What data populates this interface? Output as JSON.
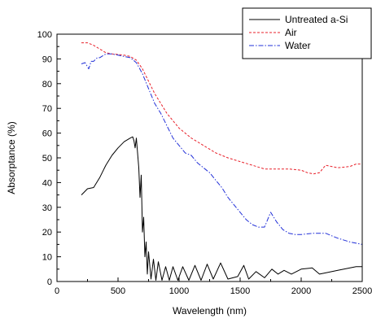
{
  "chart_data": {
    "type": "line",
    "title": "",
    "xlabel": "Wavelength (nm)",
    "ylabel": "Absorptance (%)",
    "xlim": [
      0,
      2500
    ],
    "ylim": [
      0,
      100
    ],
    "x_ticks": [
      0,
      500,
      1000,
      1500,
      2000,
      2500
    ],
    "y_ticks": [
      0,
      10,
      20,
      30,
      40,
      50,
      60,
      70,
      80,
      90,
      100
    ],
    "x_tick_labels": [
      "0",
      "500",
      "1000",
      "1500",
      "2000",
      "2500"
    ],
    "y_tick_labels": [
      "0",
      "10",
      "20",
      "30",
      "40",
      "50",
      "60",
      "70",
      "80",
      "90",
      "100"
    ],
    "grid": false,
    "legend_position": "top-right",
    "series": [
      {
        "name": "Untreated a-Si",
        "color": "#000000",
        "style": "solid",
        "points": [
          [
            200,
            35
          ],
          [
            220,
            36
          ],
          [
            250,
            37.5
          ],
          [
            300,
            38
          ],
          [
            350,
            42
          ],
          [
            400,
            47
          ],
          [
            450,
            51
          ],
          [
            500,
            54
          ],
          [
            550,
            56.5
          ],
          [
            600,
            58
          ],
          [
            620,
            58.5
          ],
          [
            630,
            57
          ],
          [
            640,
            54
          ],
          [
            650,
            58
          ],
          [
            660,
            52
          ],
          [
            670,
            46
          ],
          [
            680,
            34
          ],
          [
            690,
            43
          ],
          [
            700,
            20
          ],
          [
            710,
            26
          ],
          [
            720,
            10
          ],
          [
            730,
            16
          ],
          [
            740,
            3
          ],
          [
            750,
            12
          ],
          [
            770,
            1
          ],
          [
            790,
            9
          ],
          [
            810,
            0.5
          ],
          [
            830,
            8
          ],
          [
            860,
            0.5
          ],
          [
            890,
            6
          ],
          [
            920,
            0.5
          ],
          [
            950,
            6
          ],
          [
            990,
            0.5
          ],
          [
            1030,
            6
          ],
          [
            1080,
            0.5
          ],
          [
            1130,
            6.5
          ],
          [
            1180,
            0.5
          ],
          [
            1230,
            7
          ],
          [
            1280,
            1
          ],
          [
            1340,
            7.5
          ],
          [
            1400,
            1
          ],
          [
            1480,
            2
          ],
          [
            1530,
            6.5
          ],
          [
            1570,
            1
          ],
          [
            1630,
            4
          ],
          [
            1700,
            1.5
          ],
          [
            1760,
            5
          ],
          [
            1810,
            3
          ],
          [
            1860,
            4.5
          ],
          [
            1920,
            3
          ],
          [
            2000,
            5
          ],
          [
            2090,
            5.5
          ],
          [
            2150,
            3
          ],
          [
            2200,
            3.5
          ],
          [
            2300,
            4.5
          ],
          [
            2400,
            5.5
          ],
          [
            2450,
            6
          ],
          [
            2500,
            6
          ]
        ]
      },
      {
        "name": "Air",
        "color": "#e8202a",
        "style": "dashed",
        "points": [
          [
            200,
            96.5
          ],
          [
            250,
            96.5
          ],
          [
            300,
            95.5
          ],
          [
            350,
            94
          ],
          [
            400,
            92.5
          ],
          [
            450,
            92
          ],
          [
            500,
            91.8
          ],
          [
            550,
            91.5
          ],
          [
            600,
            91
          ],
          [
            650,
            89.5
          ],
          [
            700,
            86
          ],
          [
            750,
            81
          ],
          [
            800,
            76
          ],
          [
            850,
            72
          ],
          [
            900,
            68
          ],
          [
            950,
            65
          ],
          [
            1000,
            62
          ],
          [
            1100,
            58
          ],
          [
            1200,
            55
          ],
          [
            1300,
            52
          ],
          [
            1400,
            50
          ],
          [
            1500,
            48.5
          ],
          [
            1600,
            47
          ],
          [
            1700,
            45.5
          ],
          [
            1800,
            45.5
          ],
          [
            1900,
            45.5
          ],
          [
            2000,
            45
          ],
          [
            2050,
            44
          ],
          [
            2100,
            43.5
          ],
          [
            2150,
            44
          ],
          [
            2200,
            47
          ],
          [
            2300,
            46
          ],
          [
            2400,
            46.5
          ],
          [
            2450,
            47.5
          ],
          [
            2500,
            47.5
          ]
        ]
      },
      {
        "name": "Water",
        "color": "#2230d8",
        "style": "dashdot",
        "points": [
          [
            200,
            88
          ],
          [
            230,
            88.5
          ],
          [
            260,
            86
          ],
          [
            280,
            89
          ],
          [
            300,
            89
          ],
          [
            330,
            90.5
          ],
          [
            350,
            90.5
          ],
          [
            400,
            92
          ],
          [
            450,
            92
          ],
          [
            500,
            91.5
          ],
          [
            550,
            91
          ],
          [
            600,
            90.5
          ],
          [
            650,
            88.5
          ],
          [
            700,
            84
          ],
          [
            750,
            78
          ],
          [
            800,
            72
          ],
          [
            850,
            68
          ],
          [
            900,
            63
          ],
          [
            950,
            58
          ],
          [
            1000,
            55
          ],
          [
            1050,
            52
          ],
          [
            1100,
            51
          ],
          [
            1150,
            48
          ],
          [
            1200,
            46
          ],
          [
            1250,
            44
          ],
          [
            1300,
            41
          ],
          [
            1350,
            38
          ],
          [
            1400,
            34
          ],
          [
            1450,
            31
          ],
          [
            1500,
            28
          ],
          [
            1550,
            25
          ],
          [
            1600,
            23
          ],
          [
            1650,
            22
          ],
          [
            1700,
            22
          ],
          [
            1750,
            28
          ],
          [
            1800,
            24
          ],
          [
            1850,
            21
          ],
          [
            1900,
            19.5
          ],
          [
            1950,
            19
          ],
          [
            2000,
            19
          ],
          [
            2100,
            19.5
          ],
          [
            2200,
            19.5
          ],
          [
            2250,
            18.5
          ],
          [
            2300,
            17.5
          ],
          [
            2400,
            16
          ],
          [
            2450,
            15.5
          ],
          [
            2500,
            15
          ]
        ]
      }
    ]
  }
}
